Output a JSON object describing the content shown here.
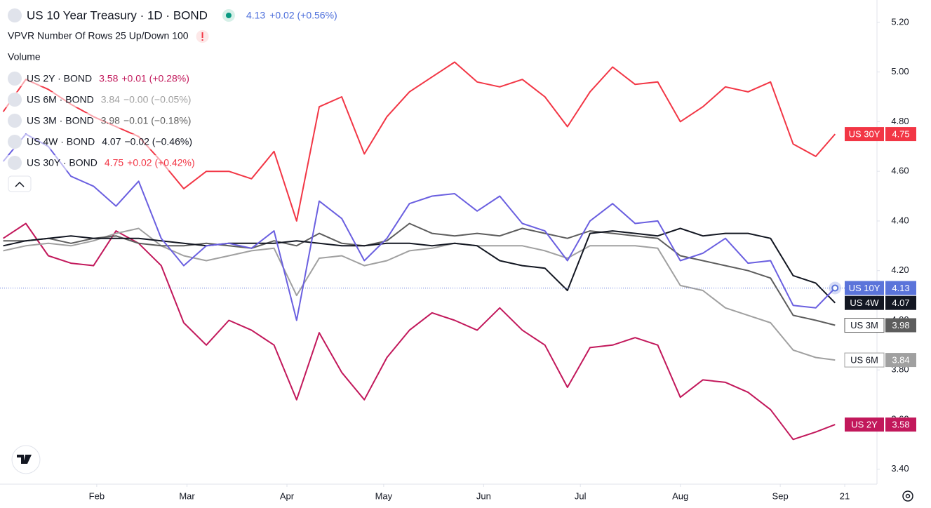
{
  "chart_data": {
    "type": "line",
    "title": "US 10 Year Treasury · 1D · BOND",
    "last": "4.13",
    "change": "+0.02 (+0.56%)",
    "indicators": [
      "VPVR Number Of Rows 25 Up/Down 100",
      "Volume"
    ],
    "x": [
      3,
      10,
      17,
      24,
      31,
      38,
      45,
      52,
      59,
      66,
      73,
      80,
      87,
      94,
      101,
      108,
      115,
      122,
      129,
      136,
      143,
      150,
      157,
      164,
      171,
      178,
      185,
      192,
      199,
      206,
      213,
      220,
      227,
      234,
      241,
      248,
      255,
      261
    ],
    "xlim": [
      2,
      274
    ],
    "xticks": [
      {
        "value": 32,
        "label": "Feb"
      },
      {
        "value": 60,
        "label": "Mar"
      },
      {
        "value": 91,
        "label": "Apr"
      },
      {
        "value": 121,
        "label": "May"
      },
      {
        "value": 152,
        "label": "Jun"
      },
      {
        "value": 182,
        "label": "Jul"
      },
      {
        "value": 213,
        "label": "Aug"
      },
      {
        "value": 244,
        "label": "Sep"
      },
      {
        "value": 264,
        "label": "21"
      }
    ],
    "ylim": [
      3.34,
      5.29
    ],
    "yticks": [
      {
        "value": 3.4,
        "label": "3.40"
      },
      {
        "value": 3.6,
        "label": "3.60"
      },
      {
        "value": 3.8,
        "label": "3.80"
      },
      {
        "value": 4,
        "label": "4.00"
      },
      {
        "value": 4.2,
        "label": "4.20"
      },
      {
        "value": 4.4,
        "label": "4.40"
      },
      {
        "value": 4.6,
        "label": "4.60"
      },
      {
        "value": 4.8,
        "label": "4.80"
      },
      {
        "value": 5,
        "label": "5.00"
      },
      {
        "value": 5.2,
        "label": "5.20"
      }
    ],
    "grid": false,
    "series": [
      {
        "name": "US 10Y",
        "color": "#6a5fe0",
        "tag_color": "#5b74da",
        "last_label": "4.13",
        "values": [
          4.64,
          4.75,
          4.7,
          4.58,
          4.54,
          4.46,
          4.56,
          4.33,
          4.22,
          4.3,
          4.31,
          4.29,
          4.36,
          4.0,
          4.48,
          4.41,
          4.24,
          4.33,
          4.47,
          4.5,
          4.51,
          4.44,
          4.5,
          4.39,
          4.36,
          4.24,
          4.4,
          4.47,
          4.39,
          4.4,
          4.24,
          4.27,
          4.33,
          4.23,
          4.24,
          4.06,
          4.05,
          4.13
        ]
      },
      {
        "name": "US 2Y",
        "symbol_label": "US 2Y · BOND",
        "color": "#c2185b",
        "last_label": "3.58",
        "change": "+0.01 (+0.28%)",
        "values": [
          4.33,
          4.39,
          4.26,
          4.23,
          4.22,
          4.36,
          4.31,
          4.22,
          3.99,
          3.9,
          4.0,
          3.96,
          3.9,
          3.68,
          3.95,
          3.79,
          3.68,
          3.85,
          3.96,
          4.03,
          4.0,
          3.96,
          4.05,
          3.96,
          3.9,
          3.73,
          3.89,
          3.9,
          3.93,
          3.9,
          3.69,
          3.76,
          3.75,
          3.71,
          3.64,
          3.52,
          3.55,
          3.58
        ]
      },
      {
        "name": "US 6M",
        "symbol_label": "US 6M · BOND",
        "color": "#a0a0a0",
        "last_label": "3.84",
        "change": "−0.00 (−0.05%)",
        "values": [
          4.28,
          4.3,
          4.31,
          4.3,
          4.32,
          4.35,
          4.37,
          4.3,
          4.26,
          4.24,
          4.26,
          4.28,
          4.29,
          4.1,
          4.25,
          4.26,
          4.22,
          4.24,
          4.28,
          4.29,
          4.31,
          4.3,
          4.3,
          4.3,
          4.28,
          4.25,
          4.3,
          4.3,
          4.3,
          4.29,
          4.14,
          4.12,
          4.05,
          4.02,
          3.99,
          3.88,
          3.85,
          3.84
        ]
      },
      {
        "name": "US 3M",
        "symbol_label": "US 3M · BOND",
        "color": "#5d5d5d",
        "last_label": "3.98",
        "change": "−0.01 (−0.18%)",
        "values": [
          4.32,
          4.32,
          4.33,
          4.31,
          4.33,
          4.34,
          4.31,
          4.3,
          4.3,
          4.31,
          4.3,
          4.29,
          4.32,
          4.3,
          4.35,
          4.31,
          4.3,
          4.32,
          4.39,
          4.35,
          4.34,
          4.35,
          4.34,
          4.37,
          4.35,
          4.33,
          4.36,
          4.35,
          4.34,
          4.33,
          4.26,
          4.24,
          4.22,
          4.2,
          4.17,
          4.02,
          4.0,
          3.98
        ]
      },
      {
        "name": "US 4W",
        "symbol_label": "US 4W · BOND",
        "color": "#131722",
        "last_label": "4.07",
        "change": "−0.02 (−0.46%)",
        "values": [
          4.3,
          4.32,
          4.33,
          4.34,
          4.33,
          4.33,
          4.33,
          4.32,
          4.31,
          4.3,
          4.31,
          4.31,
          4.31,
          4.32,
          4.31,
          4.3,
          4.3,
          4.31,
          4.31,
          4.3,
          4.31,
          4.3,
          4.24,
          4.22,
          4.21,
          4.12,
          4.35,
          4.36,
          4.35,
          4.34,
          4.37,
          4.34,
          4.35,
          4.35,
          4.33,
          4.18,
          4.15,
          4.07
        ]
      },
      {
        "name": "US 30Y",
        "symbol_label": "US 30Y · BOND",
        "color": "#f23645",
        "last_label": "4.75",
        "change": "+0.02 (+0.42%)",
        "values": [
          4.84,
          4.97,
          4.93,
          4.87,
          4.82,
          4.78,
          4.74,
          4.64,
          4.53,
          4.6,
          4.6,
          4.57,
          4.68,
          4.4,
          4.86,
          4.9,
          4.67,
          4.82,
          4.92,
          4.98,
          5.04,
          4.96,
          4.94,
          4.97,
          4.9,
          4.78,
          4.92,
          5.02,
          4.95,
          4.96,
          4.8,
          4.86,
          4.94,
          4.92,
          4.96,
          4.71,
          4.66,
          4.75
        ]
      }
    ]
  }
}
